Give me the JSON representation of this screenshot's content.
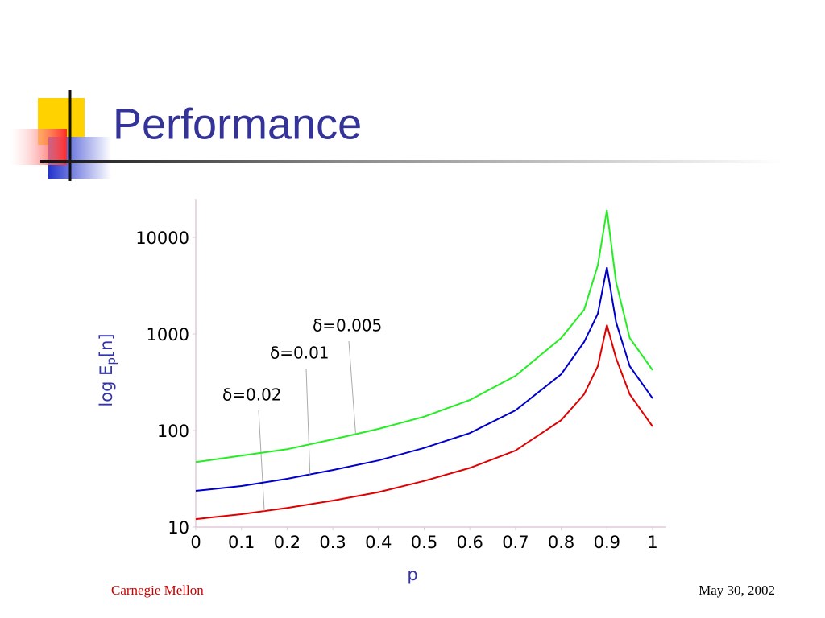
{
  "slide": {
    "title": "Performance",
    "footer_left": "Carnegie Mellon",
    "footer_right": "May 30, 2002"
  },
  "chart_data": {
    "type": "line",
    "xlabel": "p",
    "ylabel": [
      "log E",
      "p",
      "[n]"
    ],
    "log_y": true,
    "x": [
      0,
      0.1,
      0.2,
      0.3,
      0.4,
      0.5,
      0.6,
      0.7,
      0.8,
      0.85,
      0.88,
      0.9,
      0.92,
      0.95,
      1
    ],
    "series": [
      {
        "name": "δ=0.02",
        "color": "#e00000",
        "values": [
          12.1,
          13.6,
          15.8,
          18.8,
          23,
          30,
          41,
          62,
          128,
          237,
          464,
          1240,
          562,
          237,
          110
        ]
      },
      {
        "name": "δ=0.01",
        "color": "#0000cc",
        "values": [
          23.7,
          26.6,
          31.6,
          39,
          49,
          66,
          94,
          162,
          383,
          826,
          1620,
          4900,
          1330,
          464,
          215
        ]
      },
      {
        "name": "δ=0.005",
        "color": "#22ee22",
        "values": [
          47,
          55,
          64,
          81,
          104,
          139,
          207,
          369,
          908,
          1778,
          5130,
          19200,
          3470,
          908,
          422
        ]
      }
    ],
    "xlim": [
      0,
      1.03
    ],
    "xticks": [
      0,
      0.1,
      0.2,
      0.3,
      0.4,
      0.5,
      0.6,
      0.7,
      0.8,
      0.9,
      1
    ],
    "ylim": [
      10,
      25000
    ],
    "yticks": [
      10,
      100,
      1000,
      10000
    ]
  }
}
